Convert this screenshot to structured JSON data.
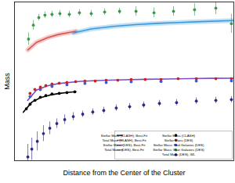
{
  "chart_data": {
    "type": "scatter",
    "x_label": "Distance from the Center of the Cluster",
    "y_label": "Mass",
    "xlim": [
      0,
      100
    ],
    "ylim": [
      0,
      100
    ],
    "tick_labels": false,
    "grid": false,
    "legend": "lower right",
    "series": [
      {
        "name": "Stellar Mass (CLASH), Best-Fit",
        "type": "line",
        "line_style": "solid",
        "color": "#000000",
        "x": [
          4,
          8,
          12,
          16,
          20,
          24,
          28
        ],
        "values": [
          30.5,
          37,
          39.8,
          41.3,
          42.3,
          43,
          43.5
        ]
      },
      {
        "name": "Total Mass (CLASH), Best-Fit",
        "type": "line",
        "line_style": "solid",
        "color": "#d9534f",
        "x": [
          6.1,
          10,
          15,
          20,
          25,
          28
        ],
        "values": [
          69.8,
          74.5,
          77.5,
          79.5,
          80.8,
          81.5
        ]
      },
      {
        "name": "Stellar Mass (DES), Best-Fit",
        "type": "line",
        "line_style": "solid",
        "color": "#7b4fc8",
        "x": [
          6,
          10,
          15,
          20,
          30,
          40,
          50,
          60,
          70,
          80,
          90,
          100
        ],
        "values": [
          38,
          44.5,
          47.2,
          48.6,
          50,
          50.6,
          51,
          51.3,
          51.5,
          51.7,
          51.9,
          52
        ]
      },
      {
        "name": "Total Mass (DES), Best-Fit",
        "type": "line",
        "line_style": "solid",
        "color": "#3a9ad9",
        "x": [
          27,
          35,
          45,
          55,
          65,
          75,
          85,
          100
        ],
        "values": [
          80.5,
          83,
          84.6,
          85.7,
          86.5,
          87.1,
          87.6,
          88.3
        ]
      },
      {
        "name": "Stellar Mass (CLASH)",
        "type": "scatter",
        "marker": "circle",
        "color": "#000000",
        "x": [
          5.4,
          7.1,
          9.3,
          11.8,
          14.3,
          17.1,
          20.4,
          23.9,
          27.5
        ],
        "values": [
          32.7,
          35.6,
          38,
          40,
          41,
          42,
          42.4,
          42.9,
          43.4
        ]
      },
      {
        "name": "Stellar Mass (DES)",
        "type": "scatter",
        "marker": "circle",
        "color": "#cc2222",
        "x": [
          7.1,
          9.3,
          11.8,
          14.3,
          17.1,
          20.4,
          23.9,
          27.9,
          32.1,
          36.8,
          41.8,
          47.1,
          53.2,
          59.6,
          66.8,
          74.6,
          82.9,
          91.8,
          98.9
        ],
        "values": [
          42.4,
          44.9,
          46.3,
          47.3,
          48.3,
          48.8,
          49.3,
          49.8,
          50.2,
          50.2,
          50.7,
          50.7,
          51.2,
          51.2,
          51.2,
          51.7,
          51.7,
          51.7,
          51.7
        ]
      },
      {
        "name": "Stellar Mass: Red Galaxies (DES)",
        "type": "scatter",
        "marker": "circle",
        "color": "#3b5bd6",
        "x": [
          7.1,
          11.8,
          17.1,
          23.9,
          32.1,
          41.8,
          53.2,
          66.8,
          82.9,
          98.9
        ],
        "values": [
          40.5,
          44.8,
          46.8,
          47.8,
          48.7,
          49.2,
          49.7,
          49.9,
          50.2,
          50.3
        ]
      },
      {
        "name": "Stellar Mass: Blue Galaxies (DES)",
        "type": "scatter",
        "marker": "circle",
        "color": "#3a9a4a",
        "x": [
          6.4,
          8.6,
          11.1,
          13.9,
          17.1,
          20.7,
          25,
          29.6,
          35,
          41.1,
          47.9,
          55.4,
          63.6,
          72.5,
          82.1,
          91.8,
          98.9
        ],
        "values": [
          76.6,
          85.4,
          90.2,
          91.7,
          92.2,
          92.7,
          92.2,
          93.2,
          92.7,
          93.7,
          94.1,
          94.1,
          93.2,
          94.1,
          95.1,
          96.1,
          86.3
        ],
        "errors": [
          4,
          3,
          2,
          2,
          2,
          2,
          2,
          2,
          2,
          2,
          2,
          3,
          3,
          3,
          4,
          4,
          6
        ]
      },
      {
        "name": "Total Mass (DES), WL",
        "type": "scatter",
        "marker": "circle",
        "color": "#2a2a8a",
        "x": [
          6.1,
          7.9,
          10.4,
          13.2,
          16.1,
          19.3,
          22.9,
          26.8,
          31.1,
          35.7,
          40.7,
          46.4,
          52.5,
          58.9,
          66.1,
          73.9,
          82.9,
          91.8,
          98.9
        ],
        "values": [
          2.4,
          7.3,
          12.2,
          17.1,
          20.5,
          23.4,
          25.9,
          27.8,
          29.3,
          30.7,
          31.7,
          33.2,
          34.1,
          35.1,
          36.1,
          36.6,
          37.6,
          38,
          38.5
        ],
        "errors": [
          8,
          7,
          6,
          5,
          4,
          3,
          3,
          2.5,
          2,
          2,
          2,
          2,
          2,
          2,
          2,
          2,
          2,
          2,
          2
        ]
      }
    ]
  }
}
